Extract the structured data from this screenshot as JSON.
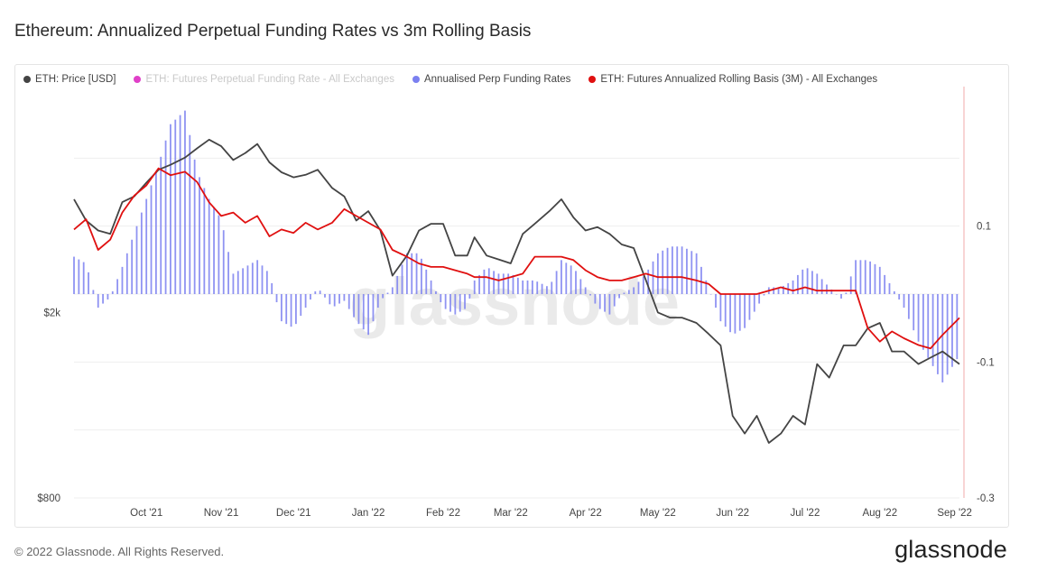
{
  "title": "Ethereum: Annualized Perpetual Funding Rates vs 3m Rolling Basis",
  "footer": "© 2022 Glassnode. All Rights Reserved.",
  "brand": "glassnode",
  "watermark": "glassnode",
  "chart_data": {
    "type": "line",
    "title": "Ethereum: Annualized Perpetual Funding Rates vs 3m Rolling Basis",
    "legend_position": "top",
    "grid": true,
    "x_range": [
      "2021-09-15",
      "2022-09-17"
    ],
    "x_ticks": [
      "Oct '21",
      "Nov '21",
      "Dec '21",
      "Jan '22",
      "Feb '22",
      "Mar '22",
      "Apr '22",
      "May '22",
      "Jun '22",
      "Jul '22",
      "Aug '22",
      "Sep '22"
    ],
    "y_left": {
      "scale": "log",
      "ticks": [
        "$800",
        "$2k"
      ],
      "range": [
        800,
        6000
      ]
    },
    "y_right": {
      "scale": "linear",
      "ticks": [
        "0.1",
        "-0.1",
        "-0.3"
      ],
      "range": [
        -0.3,
        0.3
      ]
    },
    "series": [
      {
        "name": "ETH: Price [USD]",
        "color": "#444444",
        "axis": "left",
        "x": [
          "2021-09-15",
          "2021-09-20",
          "2021-09-25",
          "2021-09-30",
          "2021-10-05",
          "2021-10-10",
          "2021-10-15",
          "2021-10-20",
          "2021-10-25",
          "2021-10-31",
          "2021-11-05",
          "2021-11-10",
          "2021-11-15",
          "2021-11-20",
          "2021-11-25",
          "2021-11-30",
          "2021-12-05",
          "2021-12-10",
          "2021-12-15",
          "2021-12-20",
          "2021-12-25",
          "2021-12-31",
          "2022-01-05",
          "2022-01-10",
          "2022-01-15",
          "2022-01-20",
          "2022-01-25",
          "2022-01-31",
          "2022-02-05",
          "2022-02-10",
          "2022-02-15",
          "2022-02-20",
          "2022-02-25",
          "2022-02-28",
          "2022-03-05",
          "2022-03-10",
          "2022-03-15",
          "2022-03-20",
          "2022-03-25",
          "2022-03-31",
          "2022-04-05",
          "2022-04-10",
          "2022-04-15",
          "2022-04-20",
          "2022-04-25",
          "2022-04-30",
          "2022-05-05",
          "2022-05-10",
          "2022-05-15",
          "2022-05-20",
          "2022-05-25",
          "2022-05-31",
          "2022-06-05",
          "2022-06-10",
          "2022-06-15",
          "2022-06-20",
          "2022-06-25",
          "2022-06-30",
          "2022-07-05",
          "2022-07-10",
          "2022-07-15",
          "2022-07-20",
          "2022-07-25",
          "2022-07-31",
          "2022-08-05",
          "2022-08-10",
          "2022-08-15",
          "2022-08-20",
          "2022-08-25",
          "2022-08-31",
          "2022-09-05",
          "2022-09-10",
          "2022-09-17"
        ],
        "values": [
          3500,
          3150,
          3000,
          2950,
          3450,
          3550,
          3800,
          4050,
          4150,
          4300,
          4500,
          4700,
          4550,
          4250,
          4400,
          4600,
          4200,
          4000,
          3900,
          3950,
          4050,
          3700,
          3550,
          3150,
          3300,
          3000,
          2400,
          2650,
          3000,
          3100,
          3100,
          2650,
          2650,
          2900,
          2650,
          2600,
          2550,
          2950,
          3100,
          3300,
          3500,
          3200,
          3000,
          3050,
          2950,
          2800,
          2750,
          2350,
          2000,
          1950,
          1950,
          1900,
          1800,
          1700,
          1200,
          1100,
          1200,
          1050,
          1100,
          1200,
          1150,
          1550,
          1450,
          1700,
          1700,
          1850,
          1900,
          1650,
          1650,
          1550,
          1600,
          1650,
          1550
        ]
      },
      {
        "name": "ETH: Futures Perpetual Funding Rate - All Exchanges",
        "color": "#e040c8",
        "axis": "right",
        "x": [],
        "values": []
      },
      {
        "name": "Annualised Perp Funding Rates",
        "color": "#7b80f0",
        "axis": "right",
        "type": "bar",
        "x": [
          "2021-09-15",
          "2021-09-20",
          "2021-09-25",
          "2021-09-30",
          "2021-10-05",
          "2021-10-10",
          "2021-10-15",
          "2021-10-20",
          "2021-10-25",
          "2021-10-31",
          "2021-11-05",
          "2021-11-10",
          "2021-11-15",
          "2021-11-20",
          "2021-11-25",
          "2021-11-30",
          "2021-12-05",
          "2021-12-10",
          "2021-12-15",
          "2021-12-20",
          "2021-12-25",
          "2021-12-31",
          "2022-01-05",
          "2022-01-10",
          "2022-01-15",
          "2022-01-20",
          "2022-01-25",
          "2022-01-31",
          "2022-02-05",
          "2022-02-10",
          "2022-02-15",
          "2022-02-20",
          "2022-02-25",
          "2022-02-28",
          "2022-03-05",
          "2022-03-10",
          "2022-03-15",
          "2022-03-20",
          "2022-03-25",
          "2022-03-31",
          "2022-04-05",
          "2022-04-10",
          "2022-04-15",
          "2022-04-20",
          "2022-04-25",
          "2022-04-30",
          "2022-05-05",
          "2022-05-10",
          "2022-05-15",
          "2022-05-20",
          "2022-05-25",
          "2022-05-31",
          "2022-06-05",
          "2022-06-10",
          "2022-06-15",
          "2022-06-20",
          "2022-06-25",
          "2022-06-30",
          "2022-07-05",
          "2022-07-10",
          "2022-07-15",
          "2022-07-20",
          "2022-07-25",
          "2022-07-31",
          "2022-08-05",
          "2022-08-10",
          "2022-08-15",
          "2022-08-20",
          "2022-08-25",
          "2022-08-31",
          "2022-09-05",
          "2022-09-10",
          "2022-09-17"
        ],
        "values": [
          0.055,
          0.045,
          -0.02,
          -0.005,
          0.04,
          0.09,
          0.14,
          0.19,
          0.25,
          0.27,
          0.18,
          0.14,
          0.11,
          0.03,
          0.04,
          0.05,
          0.03,
          -0.04,
          -0.05,
          -0.02,
          0.01,
          -0.02,
          -0.01,
          -0.04,
          -0.06,
          -0.01,
          0.01,
          0.06,
          0.06,
          0.02,
          -0.02,
          -0.03,
          -0.02,
          0.02,
          0.04,
          0.03,
          0.03,
          0.02,
          0.02,
          0.01,
          0.05,
          0.04,
          0.01,
          -0.02,
          -0.03,
          0.0,
          0.01,
          0.03,
          0.06,
          0.07,
          0.07,
          0.06,
          0.01,
          -0.04,
          -0.06,
          -0.05,
          -0.02,
          0.01,
          0.01,
          0.02,
          0.04,
          0.03,
          0.01,
          -0.01,
          0.05,
          0.05,
          0.04,
          0.01,
          -0.02,
          -0.07,
          -0.1,
          -0.13,
          -0.09
        ]
      },
      {
        "name": "ETH: Futures Annualized Rolling Basis (3M) - All Exchanges",
        "color": "#e01010",
        "axis": "right",
        "x": [
          "2021-09-15",
          "2021-09-20",
          "2021-09-25",
          "2021-09-30",
          "2021-10-05",
          "2021-10-10",
          "2021-10-15",
          "2021-10-20",
          "2021-10-25",
          "2021-10-31",
          "2021-11-05",
          "2021-11-10",
          "2021-11-15",
          "2021-11-20",
          "2021-11-25",
          "2021-11-30",
          "2021-12-05",
          "2021-12-10",
          "2021-12-15",
          "2021-12-20",
          "2021-12-25",
          "2021-12-31",
          "2022-01-05",
          "2022-01-10",
          "2022-01-15",
          "2022-01-20",
          "2022-01-25",
          "2022-01-31",
          "2022-02-05",
          "2022-02-10",
          "2022-02-15",
          "2022-02-20",
          "2022-02-25",
          "2022-02-28",
          "2022-03-05",
          "2022-03-10",
          "2022-03-15",
          "2022-03-20",
          "2022-03-25",
          "2022-03-31",
          "2022-04-05",
          "2022-04-10",
          "2022-04-15",
          "2022-04-20",
          "2022-04-25",
          "2022-04-30",
          "2022-05-05",
          "2022-05-10",
          "2022-05-15",
          "2022-05-20",
          "2022-05-25",
          "2022-05-31",
          "2022-06-05",
          "2022-06-10",
          "2022-06-15",
          "2022-06-20",
          "2022-06-25",
          "2022-06-30",
          "2022-07-05",
          "2022-07-10",
          "2022-07-15",
          "2022-07-20",
          "2022-07-25",
          "2022-07-31",
          "2022-08-05",
          "2022-08-10",
          "2022-08-15",
          "2022-08-20",
          "2022-08-25",
          "2022-08-31",
          "2022-09-05",
          "2022-09-10",
          "2022-09-17"
        ],
        "values": [
          0.095,
          0.11,
          0.065,
          0.08,
          0.12,
          0.145,
          0.16,
          0.185,
          0.175,
          0.18,
          0.165,
          0.135,
          0.115,
          0.12,
          0.105,
          0.115,
          0.085,
          0.095,
          0.09,
          0.105,
          0.095,
          0.105,
          0.125,
          0.115,
          0.105,
          0.095,
          0.065,
          0.055,
          0.045,
          0.04,
          0.04,
          0.035,
          0.03,
          0.025,
          0.025,
          0.02,
          0.025,
          0.03,
          0.055,
          0.055,
          0.055,
          0.05,
          0.035,
          0.025,
          0.02,
          0.02,
          0.025,
          0.03,
          0.025,
          0.025,
          0.025,
          0.02,
          0.015,
          0.0,
          0.0,
          0.0,
          0.0,
          0.005,
          0.01,
          0.005,
          0.01,
          0.005,
          0.005,
          0.005,
          0.005,
          -0.05,
          -0.07,
          -0.055,
          -0.065,
          -0.075,
          -0.08,
          -0.06,
          -0.035
        ]
      }
    ]
  }
}
